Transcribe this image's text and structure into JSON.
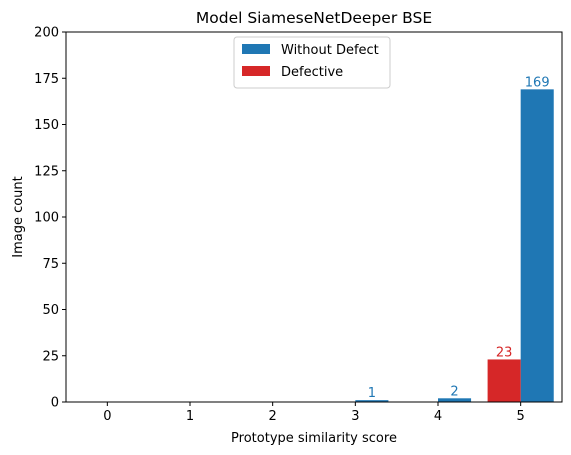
{
  "chart_data": {
    "type": "bar",
    "title": "Model SiameseNetDeeper BSE",
    "xlabel": "Prototype similarity score",
    "ylabel": "Image count",
    "categories": [
      "0",
      "1",
      "2",
      "3",
      "4",
      "5"
    ],
    "ylim": [
      0,
      200
    ],
    "yticks": [
      0,
      25,
      50,
      75,
      100,
      125,
      150,
      175,
      200
    ],
    "xlim": [
      -0.5,
      5.5
    ],
    "grid": false,
    "legend_position": "top-center",
    "series": [
      {
        "name": "Without Defect",
        "color": "#1f77b4",
        "values": [
          0,
          0,
          0,
          1,
          2,
          169
        ],
        "labels": [
          "",
          "",
          "",
          "1",
          "2",
          "169"
        ]
      },
      {
        "name": "Defective",
        "color": "#d62728",
        "values": [
          0,
          0,
          0,
          0,
          0,
          23
        ],
        "labels": [
          "",
          "",
          "",
          "",
          "",
          "23"
        ]
      }
    ]
  }
}
